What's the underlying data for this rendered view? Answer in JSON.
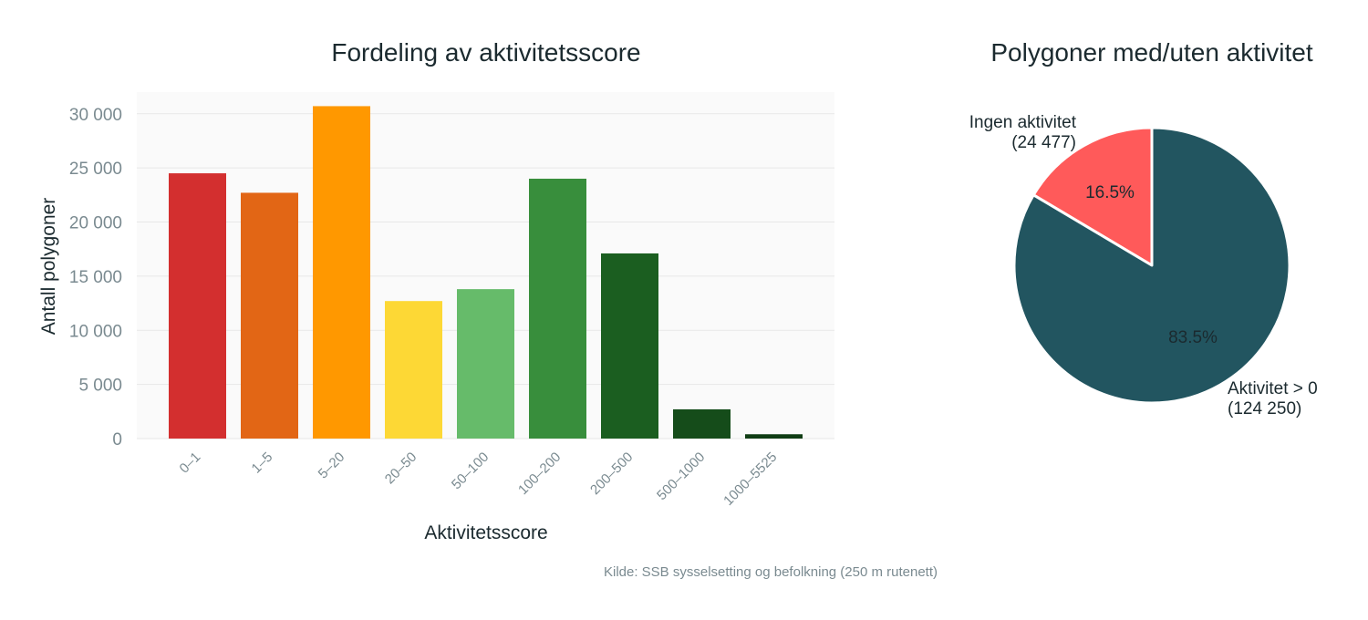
{
  "source_note": "Kilde: SSB sysselsetting og befolkning (250 m rutenett)",
  "chart_data": [
    {
      "type": "bar",
      "title": "Fordeling av aktivitetsscore",
      "xlabel": "Aktivitetsscore",
      "ylabel": "Antall polygoner",
      "categories": [
        "0–1",
        "1–5",
        "5–20",
        "20–50",
        "50–100",
        "100–200",
        "200–500",
        "500–1000",
        "1000–5525"
      ],
      "values": [
        24500,
        22700,
        30700,
        12700,
        13800,
        24000,
        17100,
        2700,
        400
      ],
      "colors": [
        "#d32f2f",
        "#e26615",
        "#ff9800",
        "#fdd835",
        "#66bb6a",
        "#388e3c",
        "#1b5e20",
        "#154c1a",
        "#103d14"
      ],
      "ylim": [
        0,
        32000
      ],
      "yticks": [
        0,
        5000,
        10000,
        15000,
        20000,
        25000,
        30000
      ],
      "ytick_labels": [
        "0",
        "5 000",
        "10 000",
        "15 000",
        "20 000",
        "25 000",
        "30 000"
      ],
      "grid": true,
      "background": "#fafafa"
    },
    {
      "type": "pie",
      "title": "Polygoner med/uten aktivitet",
      "slices": [
        {
          "label": "Ingen aktivitet",
          "count_label": "(24 477)",
          "value": 24477,
          "pct_label": "16.5%",
          "color": "#ff5a5a"
        },
        {
          "label": "Aktivitet > 0",
          "count_label": "(124 250)",
          "value": 124250,
          "pct_label": "83.5%",
          "color": "#225560"
        }
      ]
    }
  ]
}
